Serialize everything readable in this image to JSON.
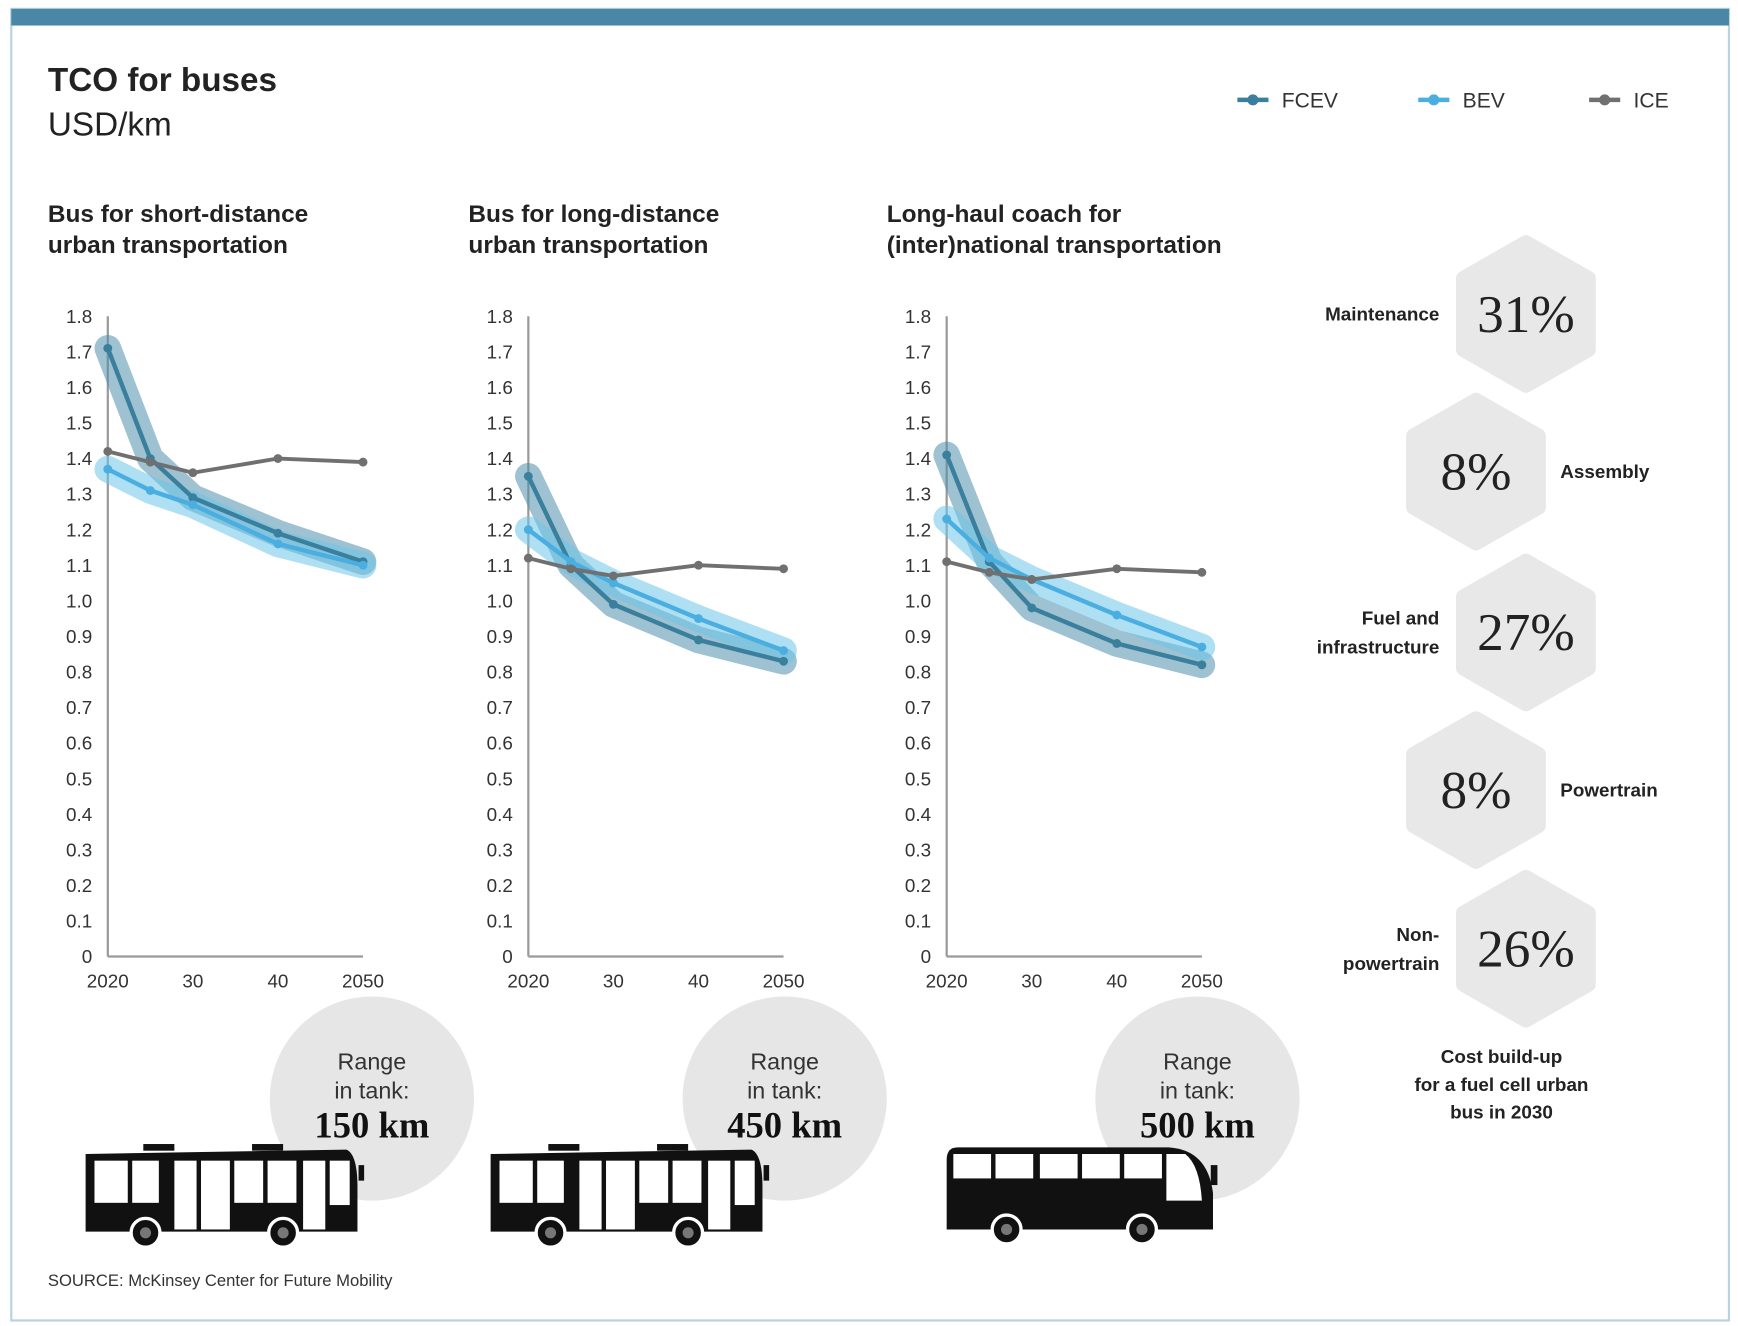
{
  "title": "TCO for buses",
  "subtitle": "USD/km",
  "legend": [
    {
      "name": "FCEV",
      "color": "#3a7f9c"
    },
    {
      "name": "BEV",
      "color": "#4aaee0"
    },
    {
      "name": "ICE",
      "color": "#707070"
    }
  ],
  "chart_data": [
    {
      "type": "line",
      "title_lines": [
        "Bus for short-distance",
        "urban transportation"
      ],
      "x": [
        2020,
        2025,
        2030,
        2040,
        2050
      ],
      "x_tick_labels": [
        "2020",
        "30",
        "40",
        "2050"
      ],
      "y_ticks": [
        "0",
        "0.1",
        "0.2",
        "0.3",
        "0.4",
        "0.5",
        "0.6",
        "0.7",
        "0.8",
        "0.9",
        "1.0",
        "1.1",
        "1.2",
        "1.3",
        "1.4",
        "1.5",
        "1.6",
        "1.7",
        "1.8"
      ],
      "ylim": [
        0,
        1.8
      ],
      "series": [
        {
          "name": "FCEV",
          "values": [
            1.71,
            1.4,
            1.29,
            1.19,
            1.11
          ]
        },
        {
          "name": "BEV",
          "values": [
            1.37,
            1.31,
            1.27,
            1.16,
            1.1
          ]
        },
        {
          "name": "ICE",
          "values": [
            1.42,
            1.39,
            1.36,
            1.4,
            1.39
          ]
        }
      ],
      "range": {
        "line1": "Range",
        "line2": "in tank:",
        "value": "150 km"
      }
    },
    {
      "type": "line",
      "title_lines": [
        "Bus for long-distance",
        "urban transportation"
      ],
      "x": [
        2020,
        2025,
        2030,
        2040,
        2050
      ],
      "x_tick_labels": [
        "2020",
        "30",
        "40",
        "2050"
      ],
      "y_ticks": [
        "0",
        "0.1",
        "0.2",
        "0.3",
        "0.4",
        "0.5",
        "0.6",
        "0.7",
        "0.8",
        "0.9",
        "1.0",
        "1.1",
        "1.2",
        "1.3",
        "1.4",
        "1.5",
        "1.6",
        "1.7",
        "1.8"
      ],
      "ylim": [
        0,
        1.8
      ],
      "series": [
        {
          "name": "FCEV",
          "values": [
            1.35,
            1.1,
            0.99,
            0.89,
            0.83
          ]
        },
        {
          "name": "BEV",
          "values": [
            1.2,
            1.11,
            1.05,
            0.95,
            0.86
          ]
        },
        {
          "name": "ICE",
          "values": [
            1.12,
            1.09,
            1.07,
            1.1,
            1.09
          ]
        }
      ],
      "range": {
        "line1": "Range",
        "line2": "in tank:",
        "value": "450 km"
      }
    },
    {
      "type": "line",
      "title_lines": [
        "Long-haul coach for",
        "(inter)national transportation"
      ],
      "x": [
        2020,
        2025,
        2030,
        2040,
        2050
      ],
      "x_tick_labels": [
        "2020",
        "30",
        "40",
        "2050"
      ],
      "y_ticks": [
        "0",
        "0.1",
        "0.2",
        "0.3",
        "0.4",
        "0.5",
        "0.6",
        "0.7",
        "0.8",
        "0.9",
        "1.0",
        "1.1",
        "1.2",
        "1.3",
        "1.4",
        "1.5",
        "1.6",
        "1.7",
        "1.8"
      ],
      "ylim": [
        0,
        1.8
      ],
      "series": [
        {
          "name": "FCEV",
          "values": [
            1.41,
            1.11,
            0.98,
            0.88,
            0.82
          ]
        },
        {
          "name": "BEV",
          "values": [
            1.23,
            1.12,
            1.06,
            0.96,
            0.87
          ]
        },
        {
          "name": "ICE",
          "values": [
            1.11,
            1.08,
            1.06,
            1.09,
            1.08
          ]
        }
      ],
      "range": {
        "line1": "Range",
        "line2": "in tank:",
        "value": "500 km"
      }
    }
  ],
  "cost_buildup": {
    "items": [
      {
        "label_lines": [
          "Maintenance"
        ],
        "value": "31%"
      },
      {
        "label_lines": [
          "Assembly"
        ],
        "value": "8%"
      },
      {
        "label_lines": [
          "Fuel and",
          "infrastructure"
        ],
        "value": "27%"
      },
      {
        "label_lines": [
          "Powertrain"
        ],
        "value": "8%"
      },
      {
        "label_lines": [
          "Non-",
          "powertrain"
        ],
        "value": "26%"
      }
    ],
    "caption_lines": [
      "Cost build-up",
      "for a fuel cell urban",
      "bus in 2030"
    ]
  },
  "source": "SOURCE: McKinsey Center for Future Mobility",
  "colors": {
    "top_bar": "#4a87a6",
    "fcev": "#3a7f9c",
    "bev": "#4aaee0",
    "ice": "#707070",
    "shape_fill": "#e8e8e8"
  }
}
